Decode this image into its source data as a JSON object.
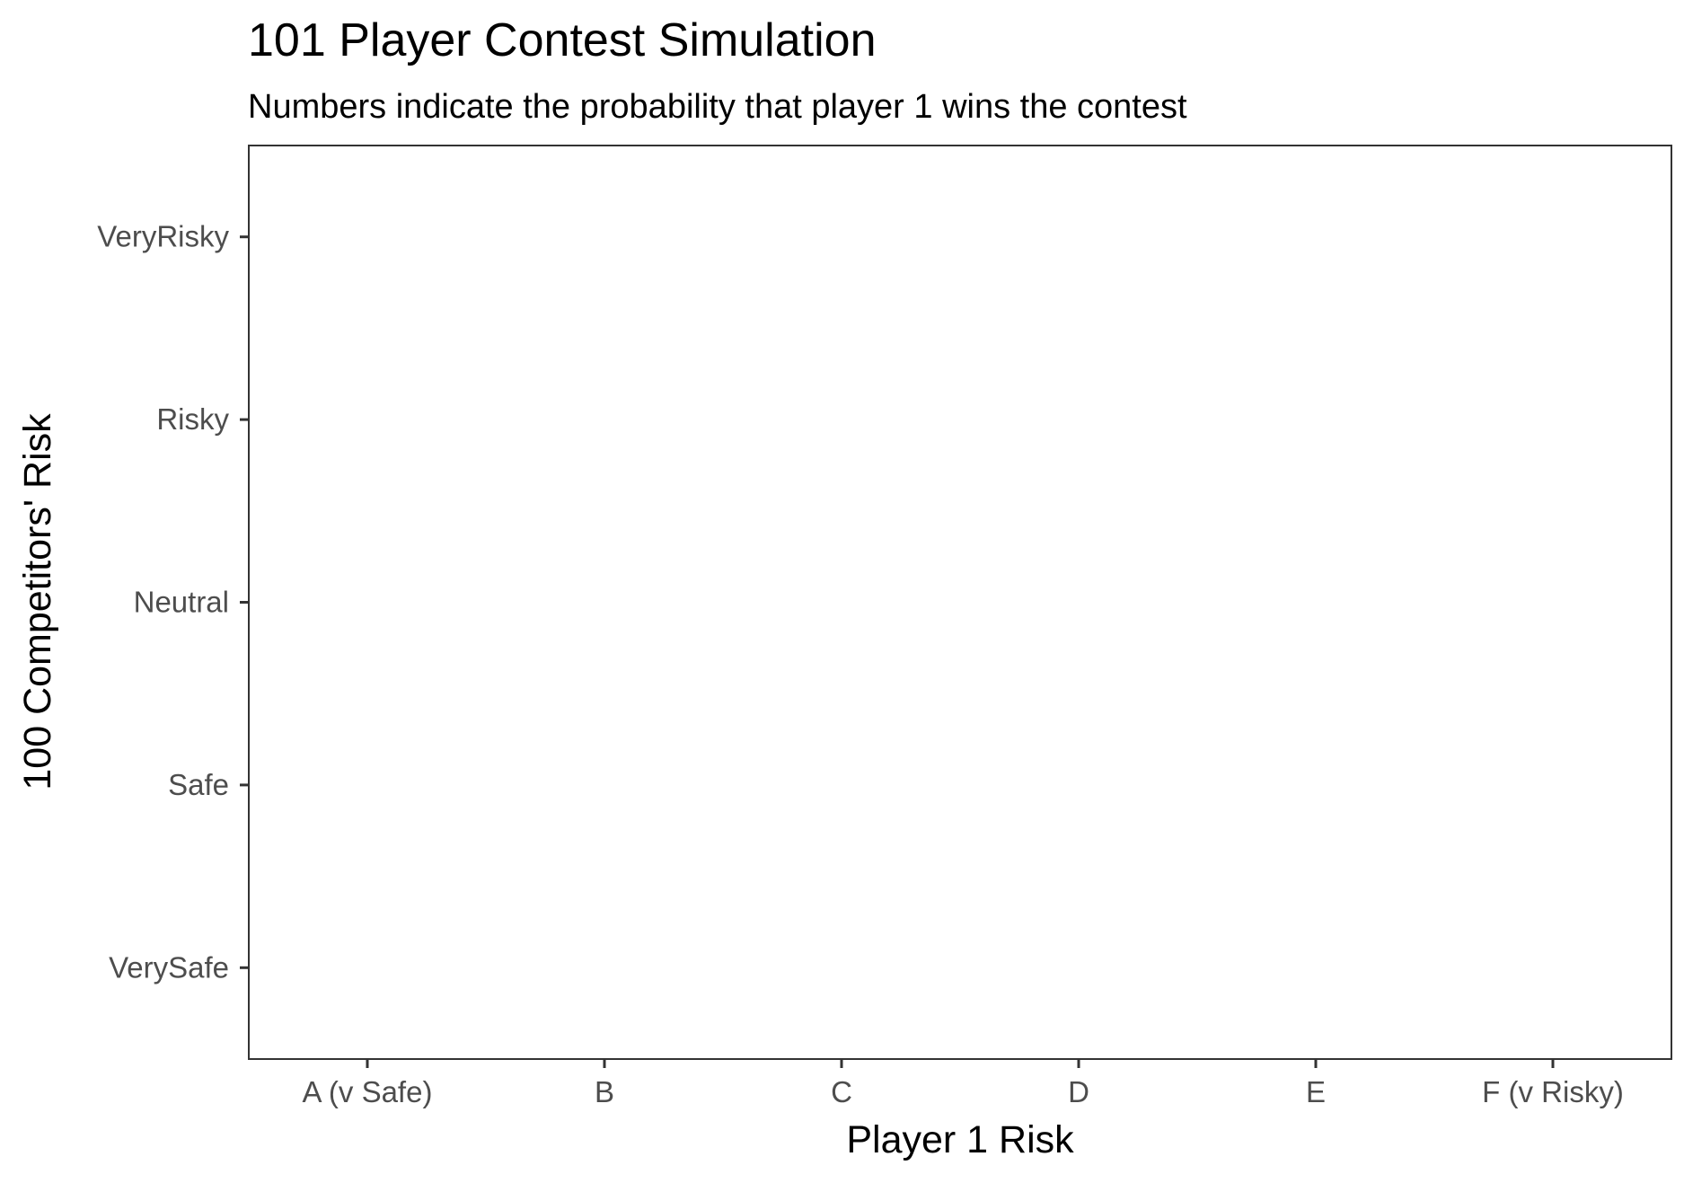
{
  "chart_data": {
    "type": "heatmap",
    "title": "101 Player Contest Simulation",
    "subtitle": "Numbers indicate the probability that player 1 wins the contest",
    "xlabel": "Player 1 Risk",
    "ylabel": "100 Competitors' Risk",
    "x_categories": [
      "A (v Safe)",
      "B",
      "C",
      "D",
      "E",
      "F (v Risky)"
    ],
    "y_categories": [
      "VerySafe",
      "Safe",
      "Neutral",
      "Risky",
      "VeryRisky"
    ],
    "cells": [],
    "grid": false,
    "legend": "none",
    "colors": {
      "panel_border": "#333333",
      "tick": "#333333",
      "tick_label": "#4d4d4d",
      "text": "#000000",
      "background": "#ffffff"
    }
  }
}
